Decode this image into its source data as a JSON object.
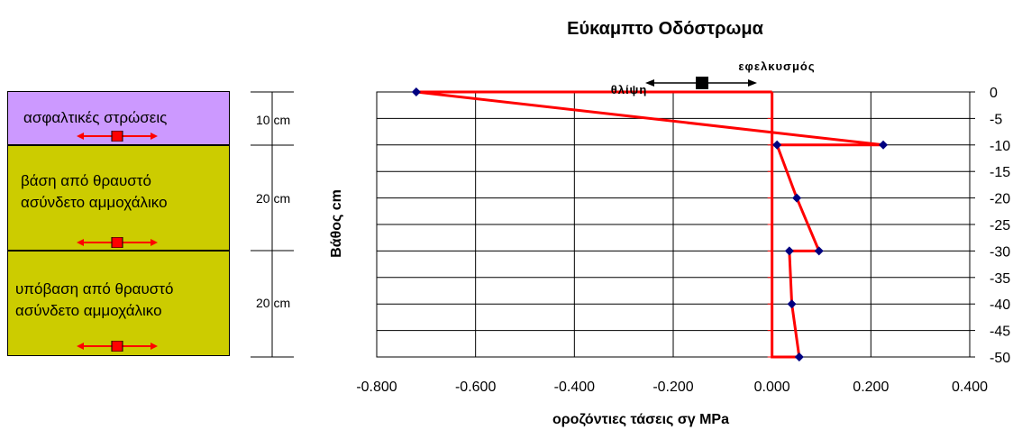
{
  "chart_data": {
    "type": "line",
    "title": "Εύκαμπτο Οδόστρωμα",
    "xlabel": "οροζόντιες τάσεις σγ    MPa",
    "ylabel": "Βάθος    cm",
    "xlim": [
      -0.8,
      0.4
    ],
    "ylim": [
      -50,
      0
    ],
    "x_ticks": [
      "-0.800",
      "-0.600",
      "-0.400",
      "-0.200",
      "0.000",
      "0.200",
      "0.400"
    ],
    "y_ticks": [
      "0",
      "-5",
      "-10",
      "-15",
      "-20",
      "-25",
      "-30",
      "-35",
      "-40",
      "-45",
      "-50"
    ],
    "grid": true,
    "series": [
      {
        "color": "#ff0000",
        "marker_color": "#000080",
        "points": [
          {
            "x": 0.0,
            "y": 0,
            "marker": false
          },
          {
            "x": -0.72,
            "y": 0,
            "marker": true
          },
          {
            "x": 0.225,
            "y": -10,
            "marker": true
          },
          {
            "x": 0.0,
            "y": -10,
            "marker": false
          },
          {
            "x": 0.01,
            "y": -10,
            "marker": true
          },
          {
            "x": 0.05,
            "y": -20,
            "marker": true
          },
          {
            "x": 0.095,
            "y": -30,
            "marker": true
          },
          {
            "x": 0.035,
            "y": -30,
            "marker": true
          },
          {
            "x": 0.04,
            "y": -40,
            "marker": true
          },
          {
            "x": 0.055,
            "y": -50,
            "marker": true
          },
          {
            "x": 0.0,
            "y": -50,
            "marker": false
          },
          {
            "x": 0.0,
            "y": 0,
            "marker": false
          }
        ]
      }
    ],
    "annotations": {
      "compression": "θλίψη",
      "tension": "εφελκυσμός"
    }
  },
  "layers": [
    {
      "label_lines": [
        "ασφαλτικές στρώσεις"
      ],
      "thickness": "10 cm"
    },
    {
      "label_lines": [
        "βάση από θραυστό",
        "ασύνδετο αμμοχάλικο"
      ],
      "thickness": "20 cm"
    },
    {
      "label_lines": [
        "υπόβαση από θραυστό",
        "ασύνδετο αμμοχάλικο"
      ],
      "thickness": "20 cm"
    }
  ],
  "colors": {
    "line": "#ff0000",
    "marker": "#000080",
    "asphalt": "#cc99ff",
    "aggregate": "#cccc00"
  }
}
